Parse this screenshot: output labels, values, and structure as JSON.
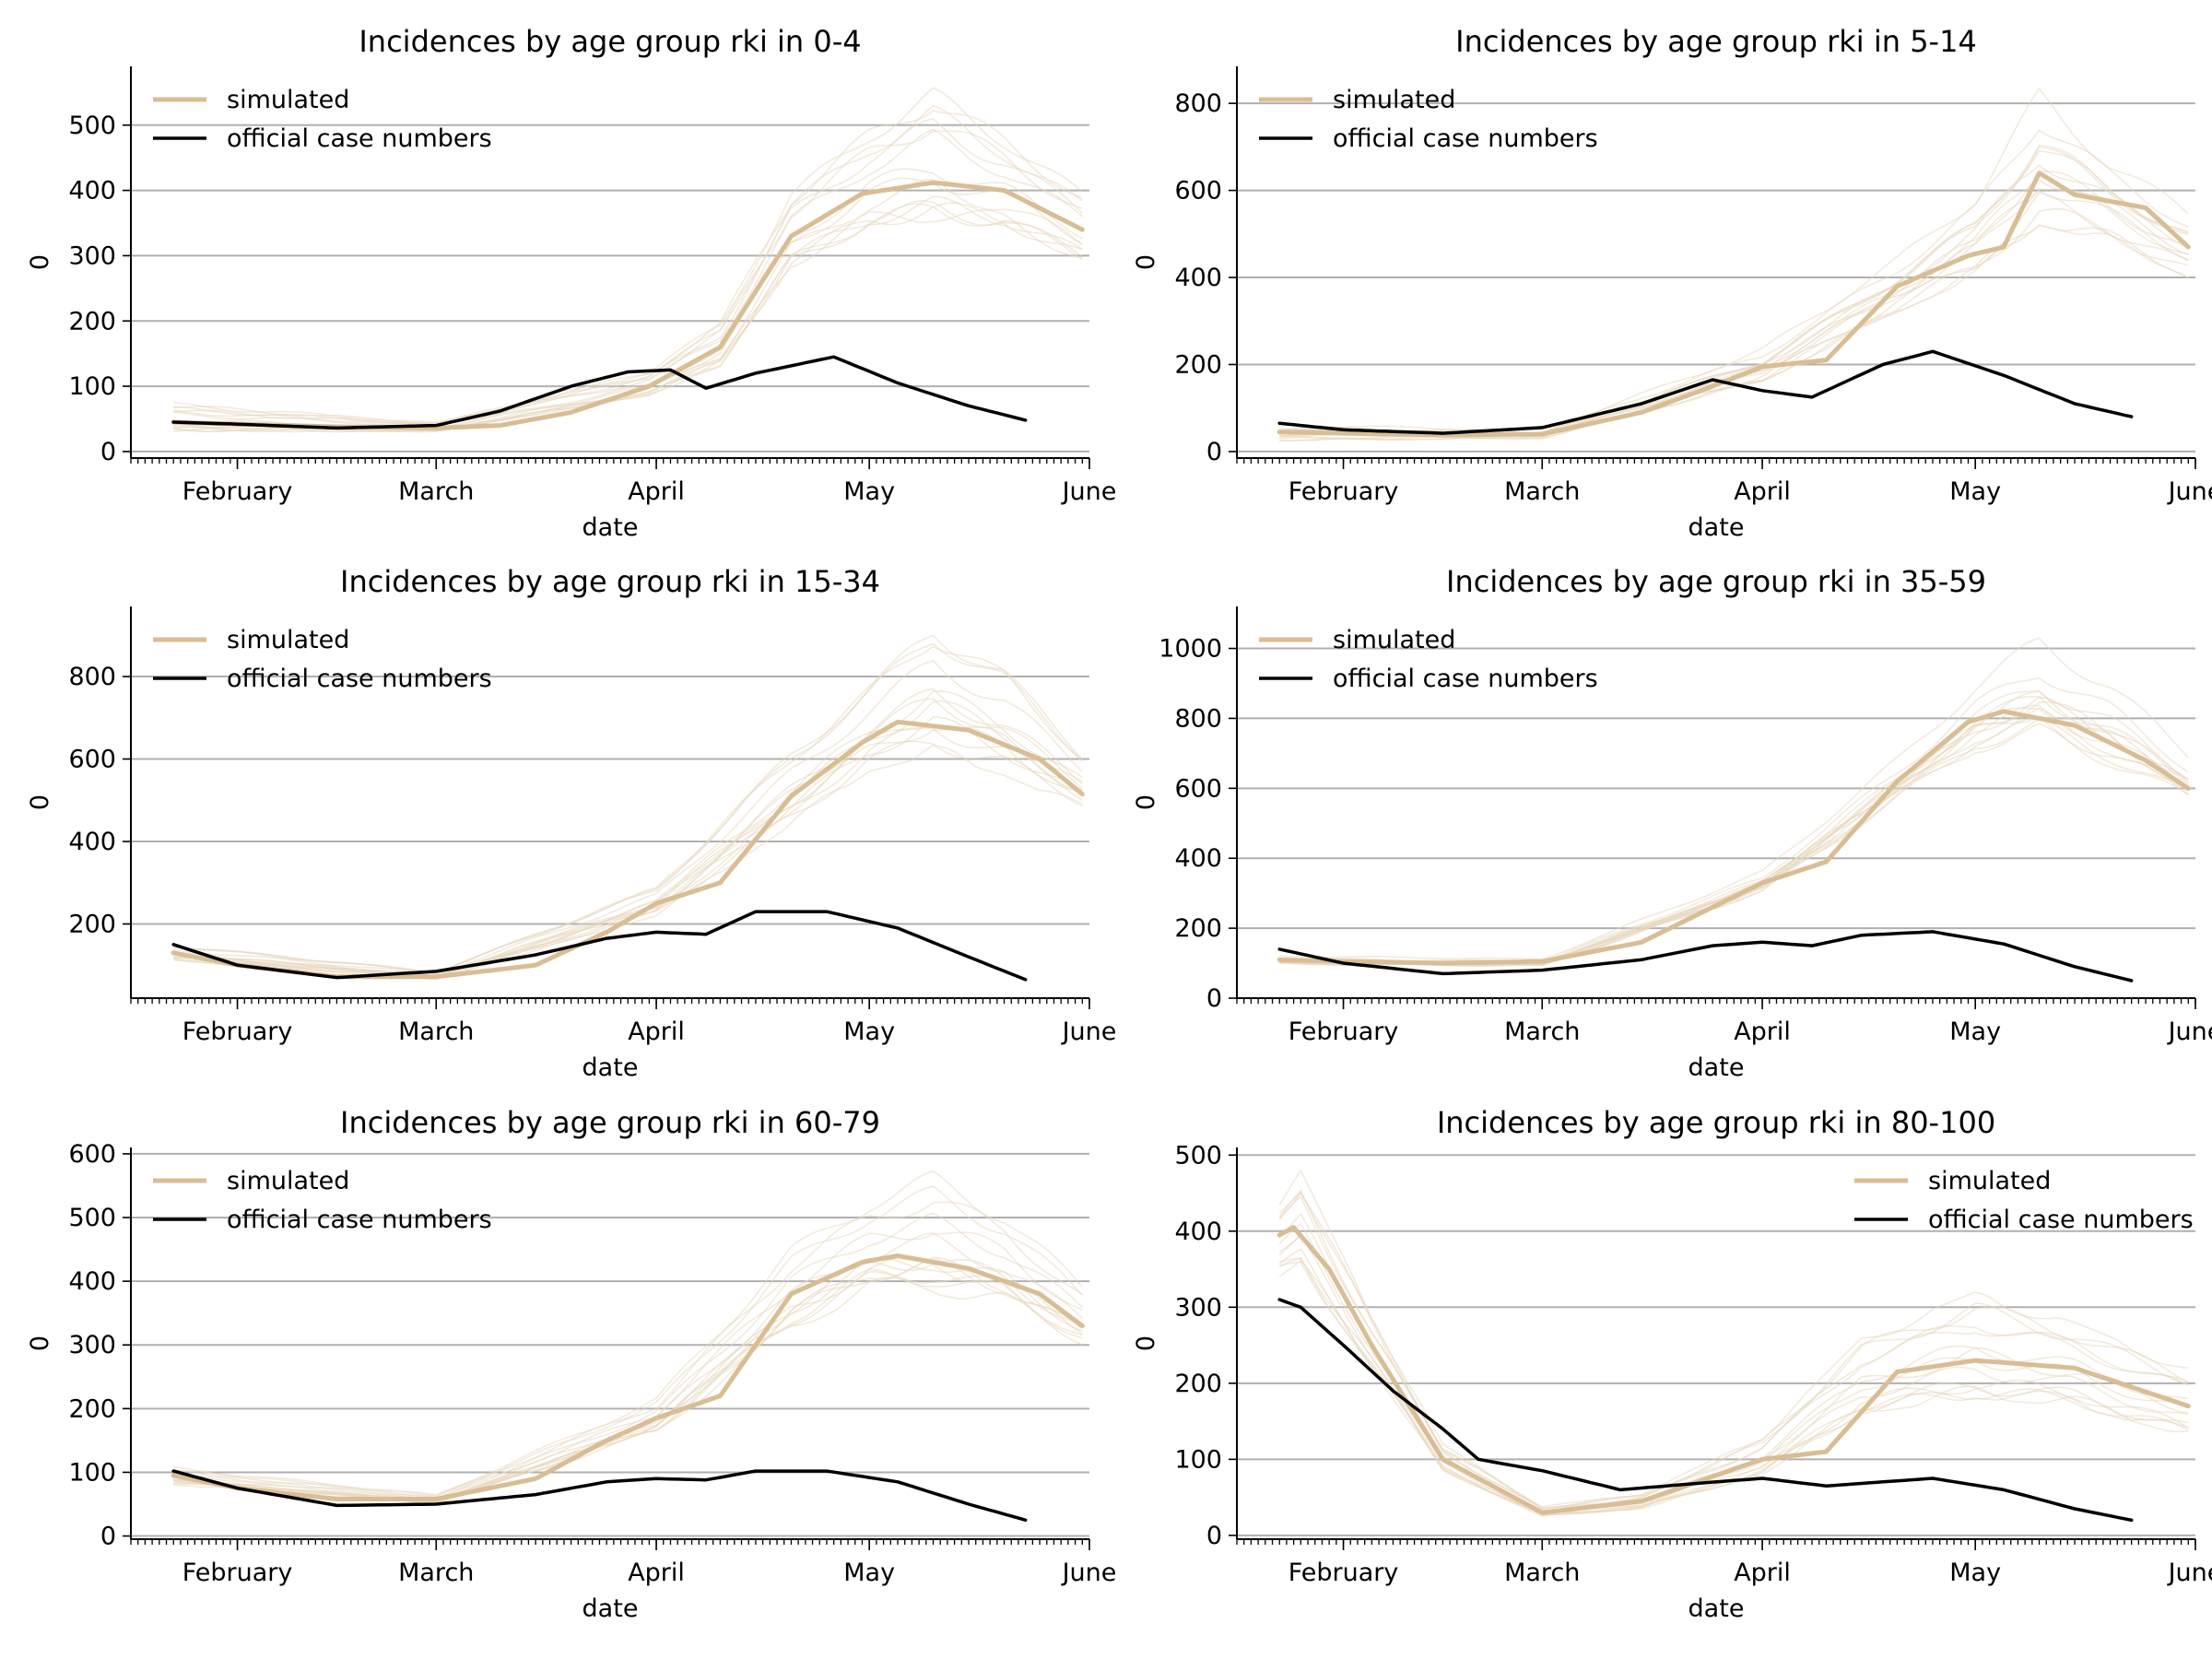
{
  "chart_data": [
    {
      "type": "line",
      "title": "Incidences by age group rki in 0-4",
      "xlabel": "date",
      "ylabel": "0",
      "x_start": "2021-01-17",
      "x_end": "2021-06-01",
      "ylim": [
        -10,
        590
      ],
      "yticks": [
        0,
        100,
        200,
        300,
        400,
        500
      ],
      "month_ticks": [
        {
          "date": "2021-02-01",
          "label": "February"
        },
        {
          "date": "2021-03-01",
          "label": "March"
        },
        {
          "date": "2021-04-01",
          "label": "April"
        },
        {
          "date": "2021-05-01",
          "label": "May"
        },
        {
          "date": "2021-06-01",
          "label": "June"
        }
      ],
      "grid": "y",
      "legend": {
        "position": "top-left",
        "entries": [
          "simulated",
          "official case numbers"
        ]
      },
      "series": [
        {
          "name": "simulated",
          "color": "#d9bd94",
          "x": [
            "2021-01-23",
            "2021-02-01",
            "2021-02-15",
            "2021-03-01",
            "2021-03-10",
            "2021-03-20",
            "2021-03-31",
            "2021-04-10",
            "2021-04-20",
            "2021-04-30",
            "2021-05-10",
            "2021-05-20",
            "2021-05-31"
          ],
          "values": [
            45,
            42,
            38,
            36,
            40,
            60,
            100,
            160,
            330,
            395,
            412,
            400,
            340
          ]
        },
        {
          "name": "official case numbers",
          "color": "#000000",
          "x": [
            "2021-01-23",
            "2021-02-01",
            "2021-02-15",
            "2021-03-01",
            "2021-03-10",
            "2021-03-20",
            "2021-03-28",
            "2021-04-03",
            "2021-04-08",
            "2021-04-15",
            "2021-04-26",
            "2021-05-05",
            "2021-05-15",
            "2021-05-23"
          ],
          "values": [
            45,
            42,
            36,
            40,
            62,
            100,
            122,
            125,
            97,
            120,
            145,
            105,
            70,
            48
          ]
        }
      ],
      "sim_band": {
        "x": [
          "2021-01-23",
          "2021-03-01",
          "2021-03-31",
          "2021-04-10",
          "2021-04-20",
          "2021-05-01",
          "2021-05-10",
          "2021-05-20",
          "2021-05-31"
        ],
        "low": [
          30,
          30,
          85,
          130,
          280,
          340,
          350,
          340,
          290
        ],
        "high": [
          75,
          45,
          125,
          200,
          400,
          500,
          560,
          490,
          400
        ]
      }
    },
    {
      "type": "line",
      "title": "Incidences by age group rki in 5-14",
      "xlabel": "date",
      "ylabel": "0",
      "x_start": "2021-01-17",
      "x_end": "2021-06-01",
      "ylim": [
        -15,
        885
      ],
      "yticks": [
        0,
        200,
        400,
        600,
        800
      ],
      "month_ticks": [
        {
          "date": "2021-02-01",
          "label": "February"
        },
        {
          "date": "2021-03-01",
          "label": "March"
        },
        {
          "date": "2021-04-01",
          "label": "April"
        },
        {
          "date": "2021-05-01",
          "label": "May"
        },
        {
          "date": "2021-06-01",
          "label": "June"
        }
      ],
      "grid": "y",
      "legend": {
        "position": "top-left",
        "entries": [
          "simulated",
          "official case numbers"
        ]
      },
      "series": [
        {
          "name": "simulated",
          "color": "#d9bd94",
          "x": [
            "2021-01-23",
            "2021-02-01",
            "2021-02-15",
            "2021-03-01",
            "2021-03-15",
            "2021-03-25",
            "2021-04-01",
            "2021-04-10",
            "2021-04-20",
            "2021-04-30",
            "2021-05-05",
            "2021-05-10",
            "2021-05-15",
            "2021-05-25",
            "2021-05-31"
          ],
          "values": [
            45,
            42,
            38,
            40,
            90,
            150,
            195,
            210,
            380,
            450,
            470,
            640,
            590,
            560,
            470
          ]
        },
        {
          "name": "official case numbers",
          "color": "#000000",
          "x": [
            "2021-01-23",
            "2021-02-01",
            "2021-02-15",
            "2021-03-01",
            "2021-03-15",
            "2021-03-25",
            "2021-04-01",
            "2021-04-08",
            "2021-04-18",
            "2021-04-25",
            "2021-05-05",
            "2021-05-15",
            "2021-05-23"
          ],
          "values": [
            65,
            50,
            42,
            55,
            110,
            165,
            140,
            125,
            200,
            230,
            175,
            110,
            80
          ]
        }
      ],
      "sim_band": {
        "x": [
          "2021-01-23",
          "2021-03-01",
          "2021-04-01",
          "2021-04-20",
          "2021-05-01",
          "2021-05-10",
          "2021-05-20",
          "2021-05-31"
        ],
        "low": [
          25,
          30,
          160,
          320,
          400,
          520,
          480,
          400
        ],
        "high": [
          65,
          50,
          240,
          450,
          600,
          840,
          680,
          560
        ]
      }
    },
    {
      "type": "line",
      "title": "Incidences by age group rki in 15-34",
      "xlabel": "date",
      "ylabel": "0",
      "x_start": "2021-01-17",
      "x_end": "2021-06-01",
      "ylim": [
        20,
        970
      ],
      "yticks": [
        200,
        400,
        600,
        800
      ],
      "month_ticks": [
        {
          "date": "2021-02-01",
          "label": "February"
        },
        {
          "date": "2021-03-01",
          "label": "March"
        },
        {
          "date": "2021-04-01",
          "label": "April"
        },
        {
          "date": "2021-05-01",
          "label": "May"
        },
        {
          "date": "2021-06-01",
          "label": "June"
        }
      ],
      "grid": "y",
      "legend": {
        "position": "top-left",
        "entries": [
          "simulated",
          "official case numbers"
        ]
      },
      "series": [
        {
          "name": "simulated",
          "color": "#d9bd94",
          "x": [
            "2021-01-23",
            "2021-02-01",
            "2021-02-15",
            "2021-03-01",
            "2021-03-15",
            "2021-03-25",
            "2021-04-01",
            "2021-04-10",
            "2021-04-20",
            "2021-04-30",
            "2021-05-05",
            "2021-05-15",
            "2021-05-25",
            "2021-05-31"
          ],
          "values": [
            130,
            100,
            72,
            72,
            100,
            180,
            250,
            300,
            510,
            640,
            690,
            670,
            600,
            515
          ]
        },
        {
          "name": "official case numbers",
          "color": "#000000",
          "x": [
            "2021-01-23",
            "2021-02-01",
            "2021-02-15",
            "2021-03-01",
            "2021-03-15",
            "2021-03-25",
            "2021-04-01",
            "2021-04-08",
            "2021-04-15",
            "2021-04-25",
            "2021-05-05",
            "2021-05-15",
            "2021-05-23"
          ],
          "values": [
            150,
            100,
            70,
            85,
            125,
            165,
            180,
            175,
            230,
            230,
            190,
            120,
            65
          ]
        }
      ],
      "sim_band": {
        "x": [
          "2021-01-23",
          "2021-03-01",
          "2021-04-01",
          "2021-04-20",
          "2021-05-01",
          "2021-05-10",
          "2021-05-20",
          "2021-05-31"
        ],
        "low": [
          110,
          65,
          220,
          440,
          570,
          610,
          560,
          480
        ],
        "high": [
          150,
          85,
          290,
          620,
          780,
          930,
          820,
          620
        ]
      }
    },
    {
      "type": "line",
      "title": "Incidences by age group rki in 35-59",
      "xlabel": "date",
      "ylabel": "0",
      "x_start": "2021-01-17",
      "x_end": "2021-06-01",
      "ylim": [
        0,
        1120
      ],
      "yticks": [
        0,
        200,
        400,
        600,
        800,
        1000
      ],
      "month_ticks": [
        {
          "date": "2021-02-01",
          "label": "February"
        },
        {
          "date": "2021-03-01",
          "label": "March"
        },
        {
          "date": "2021-04-01",
          "label": "April"
        },
        {
          "date": "2021-05-01",
          "label": "May"
        },
        {
          "date": "2021-06-01",
          "label": "June"
        }
      ],
      "grid": "y",
      "legend": {
        "position": "top-left",
        "entries": [
          "simulated",
          "official case numbers"
        ]
      },
      "series": [
        {
          "name": "simulated",
          "color": "#d9bd94",
          "x": [
            "2021-01-23",
            "2021-02-01",
            "2021-02-15",
            "2021-03-01",
            "2021-03-15",
            "2021-03-25",
            "2021-04-01",
            "2021-04-10",
            "2021-04-20",
            "2021-04-30",
            "2021-05-05",
            "2021-05-15",
            "2021-05-25",
            "2021-05-31"
          ],
          "values": [
            110,
            105,
            100,
            105,
            160,
            260,
            330,
            390,
            620,
            790,
            820,
            780,
            680,
            600
          ]
        },
        {
          "name": "official case numbers",
          "color": "#000000",
          "x": [
            "2021-01-23",
            "2021-02-01",
            "2021-02-15",
            "2021-03-01",
            "2021-03-15",
            "2021-03-25",
            "2021-04-01",
            "2021-04-08",
            "2021-04-15",
            "2021-04-25",
            "2021-05-05",
            "2021-05-15",
            "2021-05-23"
          ],
          "values": [
            140,
            100,
            70,
            80,
            110,
            150,
            160,
            150,
            180,
            190,
            155,
            90,
            50
          ]
        }
      ],
      "sim_band": {
        "x": [
          "2021-01-23",
          "2021-03-01",
          "2021-04-01",
          "2021-04-20",
          "2021-05-01",
          "2021-05-10",
          "2021-05-20",
          "2021-05-31"
        ],
        "low": [
          95,
          90,
          300,
          560,
          700,
          730,
          660,
          560
        ],
        "high": [
          125,
          115,
          370,
          700,
          920,
          1070,
          930,
          720
        ]
      }
    },
    {
      "type": "line",
      "title": "Incidences by age group rki in 60-79",
      "xlabel": "date",
      "ylabel": "0",
      "x_start": "2021-01-17",
      "x_end": "2021-06-01",
      "ylim": [
        -5,
        610
      ],
      "yticks": [
        0,
        100,
        200,
        300,
        400,
        500,
        600
      ],
      "month_ticks": [
        {
          "date": "2021-02-01",
          "label": "February"
        },
        {
          "date": "2021-03-01",
          "label": "March"
        },
        {
          "date": "2021-04-01",
          "label": "April"
        },
        {
          "date": "2021-05-01",
          "label": "May"
        },
        {
          "date": "2021-06-01",
          "label": "June"
        }
      ],
      "grid": "y",
      "legend": {
        "position": "top-left",
        "entries": [
          "simulated",
          "official case numbers"
        ]
      },
      "series": [
        {
          "name": "simulated",
          "color": "#d9bd94",
          "x": [
            "2021-01-23",
            "2021-02-01",
            "2021-02-15",
            "2021-03-01",
            "2021-03-15",
            "2021-03-25",
            "2021-04-01",
            "2021-04-10",
            "2021-04-20",
            "2021-04-30",
            "2021-05-05",
            "2021-05-15",
            "2021-05-25",
            "2021-05-31"
          ],
          "values": [
            95,
            75,
            58,
            58,
            90,
            150,
            185,
            220,
            380,
            430,
            440,
            420,
            380,
            330
          ]
        },
        {
          "name": "official case numbers",
          "color": "#000000",
          "x": [
            "2021-01-23",
            "2021-02-01",
            "2021-02-15",
            "2021-03-01",
            "2021-03-15",
            "2021-03-25",
            "2021-04-01",
            "2021-04-08",
            "2021-04-15",
            "2021-04-25",
            "2021-05-05",
            "2021-05-15",
            "2021-05-23"
          ],
          "values": [
            102,
            75,
            48,
            50,
            65,
            85,
            90,
            88,
            102,
            102,
            85,
            50,
            25
          ]
        }
      ],
      "sim_band": {
        "x": [
          "2021-01-23",
          "2021-03-01",
          "2021-04-01",
          "2021-04-20",
          "2021-05-01",
          "2021-05-10",
          "2021-05-20",
          "2021-05-31"
        ],
        "low": [
          80,
          50,
          160,
          320,
          380,
          380,
          360,
          300
        ],
        "high": [
          110,
          66,
          220,
          460,
          540,
          580,
          520,
          400
        ]
      }
    },
    {
      "type": "line",
      "title": "Incidences by age group rki in 80-100",
      "xlabel": "date",
      "ylabel": "0",
      "x_start": "2021-01-17",
      "x_end": "2021-06-01",
      "ylim": [
        -5,
        510
      ],
      "yticks": [
        0,
        100,
        200,
        300,
        400,
        500
      ],
      "month_ticks": [
        {
          "date": "2021-02-01",
          "label": "February"
        },
        {
          "date": "2021-03-01",
          "label": "March"
        },
        {
          "date": "2021-04-01",
          "label": "April"
        },
        {
          "date": "2021-05-01",
          "label": "May"
        },
        {
          "date": "2021-06-01",
          "label": "June"
        }
      ],
      "grid": "y",
      "legend": {
        "position": "top-right",
        "entries": [
          "simulated",
          "official case numbers"
        ]
      },
      "series": [
        {
          "name": "simulated",
          "color": "#d9bd94",
          "x": [
            "2021-01-23",
            "2021-01-25",
            "2021-01-30",
            "2021-02-05",
            "2021-02-15",
            "2021-03-01",
            "2021-03-15",
            "2021-04-01",
            "2021-04-10",
            "2021-04-20",
            "2021-05-01",
            "2021-05-15",
            "2021-05-31"
          ],
          "values": [
            395,
            405,
            350,
            250,
            100,
            30,
            45,
            100,
            110,
            215,
            230,
            220,
            170
          ]
        },
        {
          "name": "official case numbers",
          "color": "#000000",
          "x": [
            "2021-01-23",
            "2021-01-26",
            "2021-02-01",
            "2021-02-08",
            "2021-02-15",
            "2021-02-20",
            "2021-03-01",
            "2021-03-12",
            "2021-03-25",
            "2021-04-01",
            "2021-04-10",
            "2021-04-25",
            "2021-05-05",
            "2021-05-15",
            "2021-05-23"
          ],
          "values": [
            310,
            300,
            250,
            190,
            140,
            100,
            85,
            60,
            70,
            75,
            65,
            75,
            60,
            35,
            20
          ]
        }
      ],
      "sim_band": {
        "x": [
          "2021-01-23",
          "2021-01-26",
          "2021-02-05",
          "2021-02-15",
          "2021-03-01",
          "2021-03-15",
          "2021-04-01",
          "2021-04-15",
          "2021-05-01",
          "2021-05-15",
          "2021-05-31"
        ],
        "low": [
          340,
          350,
          220,
          85,
          25,
          35,
          80,
          160,
          180,
          170,
          130
        ],
        "high": [
          440,
          480,
          290,
          120,
          38,
          55,
          130,
          260,
          320,
          280,
          220
        ]
      }
    }
  ]
}
